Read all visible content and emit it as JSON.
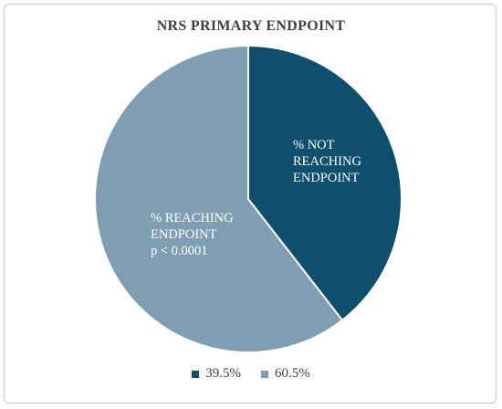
{
  "chart_data": {
    "type": "pie",
    "title": "NRS PRIMARY ENDPOINT",
    "start_angle_deg": 0,
    "direction": "clockwise",
    "slices": [
      {
        "label_lines": [
          "% NOT",
          "REACHING",
          "ENDPOINT"
        ],
        "legend": "39.5%",
        "value": 39.5,
        "color": "#0e4f6e"
      },
      {
        "label_lines": [
          "% REACHING",
          "ENDPOINT",
          "p < 0.0001"
        ],
        "legend": "60.5%",
        "value": 60.5,
        "color": "#7f9eb1"
      }
    ],
    "legend_position": "bottom"
  }
}
